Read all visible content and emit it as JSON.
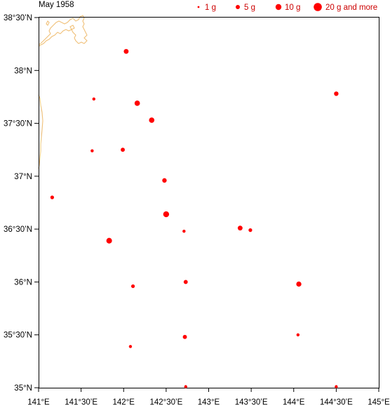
{
  "title": "May 1958",
  "colors": {
    "dot": "#ff0000",
    "legend_text": "#cc0000",
    "coast": "#f0c078",
    "frame": "#000000"
  },
  "legend": [
    {
      "label": "1 g",
      "value": 1
    },
    {
      "label": "5 g",
      "value": 5
    },
    {
      "label": "10 g",
      "value": 10
    },
    {
      "label": "20 g and more",
      "value": 20
    }
  ],
  "axes": {
    "lon_range": [
      141,
      145
    ],
    "lat_range": [
      35,
      38.5
    ],
    "x_ticks": [
      {
        "value": 141,
        "label": "141°E"
      },
      {
        "value": 141.5,
        "label": "141°30’E"
      },
      {
        "value": 142,
        "label": "142°E"
      },
      {
        "value": 142.5,
        "label": "142°30’E"
      },
      {
        "value": 143,
        "label": "143°E"
      },
      {
        "value": 143.5,
        "label": "143°30’E"
      },
      {
        "value": 144,
        "label": "144°E"
      },
      {
        "value": 144.5,
        "label": "144°30’E"
      },
      {
        "value": 145,
        "label": "145°E"
      }
    ],
    "y_ticks": [
      {
        "value": 35,
        "label": "35°N"
      },
      {
        "value": 35.5,
        "label": "35°30’N"
      },
      {
        "value": 36,
        "label": "36°N"
      },
      {
        "value": 36.5,
        "label": "36°30’N"
      },
      {
        "value": 37,
        "label": "37°N"
      },
      {
        "value": 37.5,
        "label": "37°30’N"
      },
      {
        "value": 38,
        "label": "38°N"
      },
      {
        "value": 38.5,
        "label": "38°30’N"
      }
    ]
  },
  "chart_data": {
    "type": "scatter",
    "title": "May 1958",
    "xlabel": "",
    "ylabel": "",
    "xlim": [
      141,
      145
    ],
    "ylim": [
      35,
      38.5
    ],
    "grid": false,
    "legend_position": "top-right",
    "points": [
      {
        "lon": 142.03,
        "lat": 38.18,
        "g": 5
      },
      {
        "lon": 142.16,
        "lat": 37.69,
        "g": 7
      },
      {
        "lon": 142.33,
        "lat": 37.53,
        "g": 7
      },
      {
        "lon": 141.65,
        "lat": 37.73,
        "g": 1
      },
      {
        "lon": 141.63,
        "lat": 37.24,
        "g": 1
      },
      {
        "lon": 141.99,
        "lat": 37.25,
        "g": 3
      },
      {
        "lon": 142.48,
        "lat": 36.96,
        "g": 4
      },
      {
        "lon": 141.16,
        "lat": 36.8,
        "g": 2
      },
      {
        "lon": 142.5,
        "lat": 36.64,
        "g": 9
      },
      {
        "lon": 142.71,
        "lat": 36.48,
        "g": 1
      },
      {
        "lon": 143.37,
        "lat": 36.51,
        "g": 5
      },
      {
        "lon": 143.49,
        "lat": 36.49,
        "g": 2
      },
      {
        "lon": 141.83,
        "lat": 36.39,
        "g": 8
      },
      {
        "lon": 144.5,
        "lat": 37.78,
        "g": 4
      },
      {
        "lon": 142.11,
        "lat": 35.96,
        "g": 2
      },
      {
        "lon": 142.73,
        "lat": 36.0,
        "g": 3
      },
      {
        "lon": 144.06,
        "lat": 35.98,
        "g": 6
      },
      {
        "lon": 142.72,
        "lat": 35.48,
        "g": 3
      },
      {
        "lon": 144.05,
        "lat": 35.5,
        "g": 1
      },
      {
        "lon": 142.08,
        "lat": 35.39,
        "g": 1
      },
      {
        "lon": 142.73,
        "lat": 35.01,
        "g": 1
      },
      {
        "lon": 144.5,
        "lat": 35.01,
        "g": 1
      }
    ]
  }
}
